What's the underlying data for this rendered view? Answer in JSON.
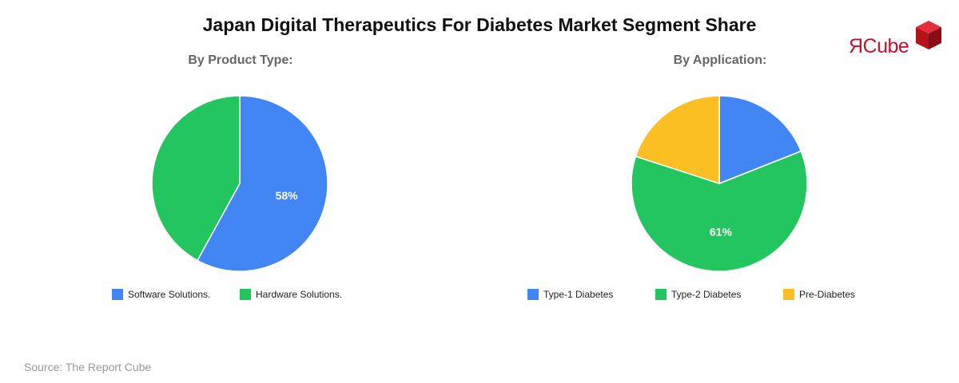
{
  "header": {
    "title": "Japan Digital Therapeutics For Diabetes Market Segment Share"
  },
  "logo": {
    "text": "ЯCube",
    "brand_color": "#c8102e"
  },
  "chart_data": [
    {
      "type": "pie",
      "title": "By Product Type:",
      "slices": [
        {
          "label": "Software Solutions.",
          "value": 58,
          "color": "#4285f4",
          "data_label": "58%"
        },
        {
          "label": "Hardware Solutions.",
          "value": 42,
          "color": "#22c55e",
          "data_label": ""
        }
      ],
      "legend_position": "bottom"
    },
    {
      "type": "pie",
      "title": "By Application:",
      "slices": [
        {
          "label": "Type-1 Diabetes",
          "value": 19,
          "color": "#4285f4",
          "data_label": ""
        },
        {
          "label": "Type-2 Diabetes",
          "value": 61,
          "color": "#22c55e",
          "data_label": "61%"
        },
        {
          "label": "Pre-Diabetes",
          "value": 20,
          "color": "#fbbf24",
          "data_label": ""
        }
      ],
      "legend_position": "bottom"
    }
  ],
  "footer": {
    "source": "Source: The Report Cube"
  }
}
